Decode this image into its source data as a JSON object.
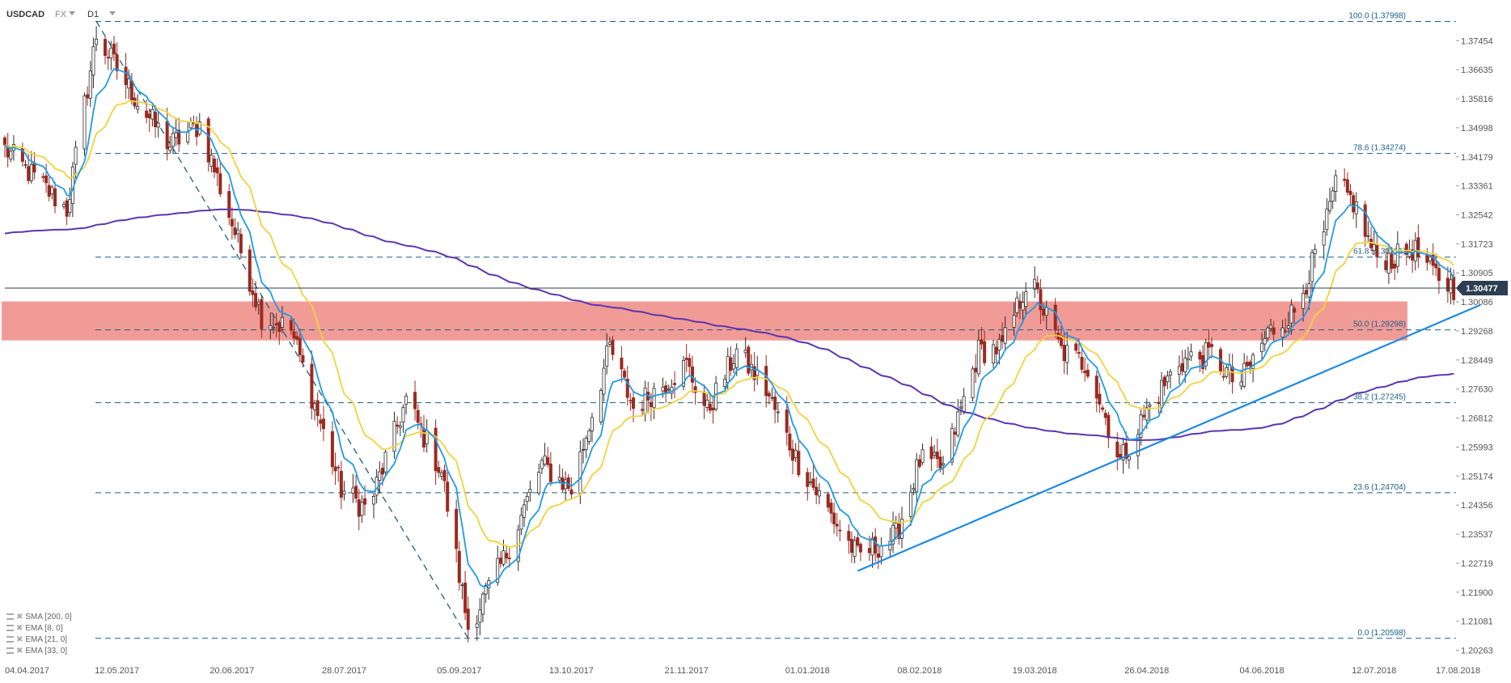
{
  "header": {
    "symbol": "USDCAD",
    "market": "FX",
    "timeframe": "D1"
  },
  "colors": {
    "candle_up": "#2b2b2b",
    "candle_down": "#9b2a20",
    "ema_fast": "#1e9be8",
    "ema_slow": "#f2d23c",
    "sma_long": "#5a36b0",
    "zone_fill": "#ee8a84",
    "fib_line": "#1a5f8a",
    "trendline": "#1e88e5",
    "price_line": "#2c3e50",
    "price_badge": "#2c3e50",
    "axis_text": "#555555"
  },
  "legend": [
    {
      "label": "SMA [200, 0]"
    },
    {
      "label": "EMA [8, 0]"
    },
    {
      "label": "EMA [21, 0]"
    },
    {
      "label": "EMA [33, 0]"
    }
  ],
  "chart_data": {
    "type": "candlestick",
    "symbol": "USDCAD",
    "timeframe": "D1",
    "current_price": "1.30477",
    "ylim": [
      1.2,
      1.381
    ],
    "y_ticks": [
      "1.37454",
      "1.36635",
      "1.35816",
      "1.34998",
      "1.34179",
      "1.33361",
      "1.32542",
      "1.31723",
      "1.30905",
      "1.30086",
      "1.29268",
      "1.28449",
      "1.27630",
      "1.26812",
      "1.25993",
      "1.25174",
      "1.24356",
      "1.23537",
      "1.22719",
      "1.21900",
      "1.21081",
      "1.20263"
    ],
    "x_ticks": [
      {
        "label": "04.04.2017",
        "date": "2017-04-04"
      },
      {
        "label": "12.05.2017",
        "date": "2017-05-12"
      },
      {
        "label": "20.06.2017",
        "date": "2017-06-20"
      },
      {
        "label": "28.07.2017",
        "date": "2017-07-28"
      },
      {
        "label": "05.09.2017",
        "date": "2017-09-05"
      },
      {
        "label": "13.10.2017",
        "date": "2017-10-13"
      },
      {
        "label": "21.11.2017",
        "date": "2017-11-21"
      },
      {
        "label": "01.01.2018",
        "date": "2018-01-01"
      },
      {
        "label": "08.02.2018",
        "date": "2018-02-08"
      },
      {
        "label": "19.03.2018",
        "date": "2018-03-19"
      },
      {
        "label": "26.04.2018",
        "date": "2018-04-26"
      },
      {
        "label": "04.06.2018",
        "date": "2018-06-04"
      },
      {
        "label": "12.07.2018",
        "date": "2018-07-12"
      },
      {
        "label": "17.08.2018",
        "date": "2018-08-17"
      }
    ],
    "fib_levels": [
      {
        "label": "100.0 (1.37998)",
        "value": 1.37998
      },
      {
        "label": "78.6 (1.34274)",
        "value": 1.34274
      },
      {
        "label": "61.8 (1.31351)",
        "value": 1.31351
      },
      {
        "label": "50.0 (1.29298)",
        "value": 1.29298
      },
      {
        "label": "38.2 (1.27245)",
        "value": 1.27245
      },
      {
        "label": "23.6 (1.24704)",
        "value": 1.24704
      },
      {
        "label": "0.0 (1.20598)",
        "value": 1.20598
      }
    ],
    "zone": {
      "from": 1.29,
      "to": 1.301
    },
    "fib_diagonal": [
      {
        "date": "2017-05-05",
        "price": 1.38
      },
      {
        "date": "2017-09-08",
        "price": 1.206
      }
    ],
    "trendline": [
      {
        "date": "2018-01-18",
        "price": 1.225
      },
      {
        "date": "2018-08-17",
        "price": 1.3
      }
    ],
    "anchors": [
      {
        "date": "2017-04-04",
        "price": 1.344
      },
      {
        "date": "2017-04-25",
        "price": 1.327
      },
      {
        "date": "2017-05-05",
        "price": 1.376
      },
      {
        "date": "2017-05-20",
        "price": 1.356
      },
      {
        "date": "2017-05-30",
        "price": 1.345
      },
      {
        "date": "2017-06-09",
        "price": 1.351
      },
      {
        "date": "2017-06-20",
        "price": 1.323
      },
      {
        "date": "2017-06-30",
        "price": 1.297
      },
      {
        "date": "2017-07-10",
        "price": 1.293
      },
      {
        "date": "2017-07-27",
        "price": 1.248
      },
      {
        "date": "2017-08-05",
        "price": 1.242
      },
      {
        "date": "2017-08-18",
        "price": 1.273
      },
      {
        "date": "2017-08-30",
        "price": 1.253
      },
      {
        "date": "2017-09-08",
        "price": 1.209
      },
      {
        "date": "2017-09-20",
        "price": 1.228
      },
      {
        "date": "2017-10-03",
        "price": 1.255
      },
      {
        "date": "2017-10-13",
        "price": 1.248
      },
      {
        "date": "2017-10-26",
        "price": 1.288
      },
      {
        "date": "2017-11-03",
        "price": 1.271
      },
      {
        "date": "2017-11-21",
        "price": 1.283
      },
      {
        "date": "2017-11-28",
        "price": 1.27
      },
      {
        "date": "2017-12-08",
        "price": 1.287
      },
      {
        "date": "2017-12-18",
        "price": 1.276
      },
      {
        "date": "2017-12-28",
        "price": 1.257
      },
      {
        "date": "2018-01-08",
        "price": 1.242
      },
      {
        "date": "2018-01-18",
        "price": 1.229
      },
      {
        "date": "2018-01-31",
        "price": 1.235
      },
      {
        "date": "2018-02-08",
        "price": 1.256
      },
      {
        "date": "2018-02-16",
        "price": 1.254
      },
      {
        "date": "2018-02-28",
        "price": 1.287
      },
      {
        "date": "2018-03-08",
        "price": 1.288
      },
      {
        "date": "2018-03-17",
        "price": 1.308
      },
      {
        "date": "2018-03-28",
        "price": 1.287
      },
      {
        "date": "2018-04-06",
        "price": 1.283
      },
      {
        "date": "2018-04-17",
        "price": 1.256
      },
      {
        "date": "2018-04-26",
        "price": 1.27
      },
      {
        "date": "2018-05-07",
        "price": 1.284
      },
      {
        "date": "2018-05-18",
        "price": 1.286
      },
      {
        "date": "2018-05-27",
        "price": 1.277
      },
      {
        "date": "2018-06-06",
        "price": 1.292
      },
      {
        "date": "2018-06-15",
        "price": 1.298
      },
      {
        "date": "2018-06-25",
        "price": 1.32
      },
      {
        "date": "2018-06-29",
        "price": 1.334
      },
      {
        "date": "2018-07-05",
        "price": 1.329
      },
      {
        "date": "2018-07-12",
        "price": 1.314
      },
      {
        "date": "2018-07-19",
        "price": 1.313
      },
      {
        "date": "2018-07-25",
        "price": 1.316
      },
      {
        "date": "2018-08-01",
        "price": 1.309
      },
      {
        "date": "2018-08-08",
        "price": 1.3048
      }
    ]
  }
}
